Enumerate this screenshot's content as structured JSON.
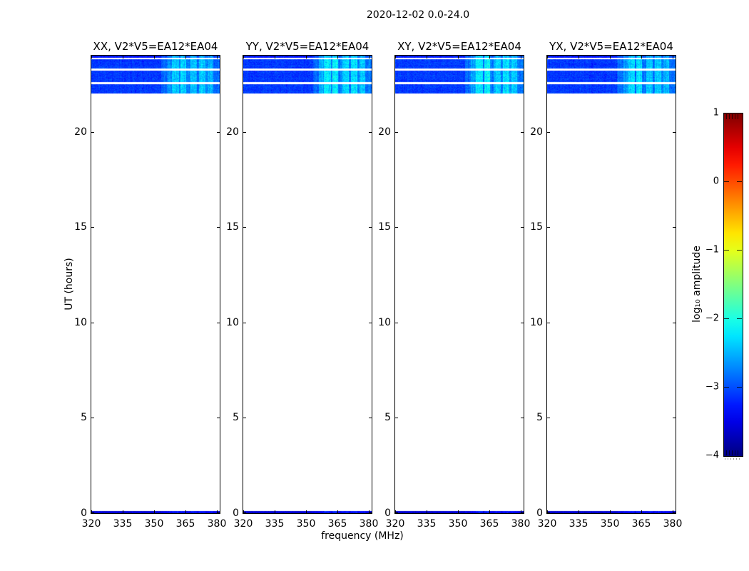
{
  "figure": {
    "title": "2020-12-02 0.0-24.0"
  },
  "chart_data": {
    "type": "heatmap",
    "title": "2020-12-02 0.0-24.0",
    "xlabel": "frequency (MHz)",
    "ylabel": "UT (hours)",
    "xlim": [
      320,
      381.4
    ],
    "ylim": [
      0,
      24
    ],
    "xticks": [
      320,
      335,
      350,
      365,
      380
    ],
    "yticks": [
      0,
      5,
      10,
      15,
      20
    ],
    "grid": false,
    "panels": [
      {
        "title": "XX, V2*V5=EA12*EA04",
        "bright_scale": 0.85
      },
      {
        "title": "YY, V2*V5=EA12*EA04",
        "bright_scale": 1.05
      },
      {
        "title": "XY, V2*V5=EA12*EA04",
        "bright_scale": 1.0
      },
      {
        "title": "YX, V2*V5=EA12*EA04",
        "bright_scale": 0.9
      }
    ],
    "data_bands_ut": [
      [
        23.88,
        24.0
      ],
      [
        23.32,
        23.83
      ],
      [
        22.62,
        23.2
      ],
      [
        22.02,
        22.5
      ]
    ],
    "bottom_band_ut": [
      0,
      0.12
    ],
    "base_level": -3.1,
    "noise_sigma": 0.27,
    "bright_segments": [
      [
        353.5,
        356,
        0.25
      ],
      [
        356,
        358.5,
        0.5
      ],
      [
        358.5,
        362,
        0.85
      ],
      [
        362,
        362.8,
        0.3
      ],
      [
        362.8,
        365.5,
        0.9
      ],
      [
        365.5,
        367.5,
        0.35
      ],
      [
        367.5,
        370.5,
        0.75
      ],
      [
        370.5,
        371.5,
        0.3
      ],
      [
        371.5,
        374.5,
        0.8
      ],
      [
        374.5,
        375.5,
        0.35
      ],
      [
        375.5,
        378.5,
        0.7
      ],
      [
        378.5,
        381.4,
        0.3
      ]
    ],
    "bottom_level": -3.6,
    "bottom_bright_factor": 0.35,
    "colorbar": {
      "label": "log₁₀ amplitude",
      "colormap": "jet",
      "lim": [
        -4,
        1
      ],
      "ticks": [
        1,
        0,
        -1,
        -2,
        -3,
        -4
      ],
      "tick_labels": [
        "1",
        "0",
        "−1",
        "−2",
        "−3",
        "−4"
      ]
    }
  }
}
